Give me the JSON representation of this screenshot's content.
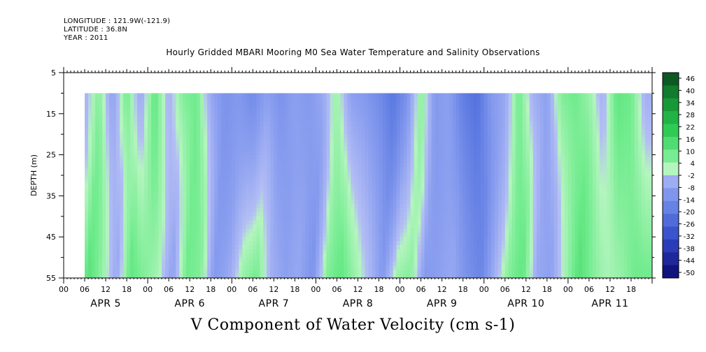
{
  "header": {
    "longitude": "LONGITUDE : 121.9W(-121.9)",
    "latitude": "LATITUDE : 36.8N",
    "year": "YEAR : 2011"
  },
  "chart_data": {
    "type": "heatmap",
    "title": "Hourly Gridded MBARI Mooring M0 Sea Water Temperature and Salinity Observations",
    "ylabel": "DEPTH (m)",
    "xlabel": "",
    "footer_label": "V Component of Water Velocity (cm s-1)",
    "y_ticks": [
      "5",
      "15",
      "25",
      "35",
      "45",
      "55"
    ],
    "y_tick_values": [
      5,
      15,
      25,
      35,
      45,
      55
    ],
    "ylim": [
      55,
      5
    ],
    "y_data_range": [
      10,
      55
    ],
    "x_hour_ticks": [
      "00",
      "06",
      "12",
      "18",
      "00",
      "06",
      "12",
      "18",
      "00",
      "06",
      "12",
      "18",
      "00",
      "06",
      "12",
      "18",
      "00",
      "06",
      "12",
      "18",
      "00",
      "06",
      "12",
      "18",
      "00",
      "06",
      "12",
      "18"
    ],
    "x_day_labels": [
      "APR  5",
      "APR  6",
      "APR  7",
      "APR  8",
      "APR  9",
      "APR 10",
      "APR 11"
    ],
    "x_range_hours": [
      0,
      168
    ],
    "data_start_hour": 6,
    "grid": false,
    "colorbar": {
      "position": "right",
      "labels": [
        "46",
        "40",
        "34",
        "28",
        "22",
        "16",
        "10",
        "4",
        "-2",
        "-8",
        "-14",
        "-20",
        "-26",
        "-32",
        "-38",
        "-44",
        "-50"
      ],
      "min": -50,
      "max": 46
    },
    "value_pattern": {
      "description_free": true,
      "hours": [
        6,
        10,
        14,
        18,
        22,
        26,
        30,
        34,
        38,
        42,
        46,
        50,
        54,
        58,
        62,
        66,
        70,
        74,
        78,
        82,
        86,
        90,
        94,
        98,
        102,
        106,
        110,
        114,
        118,
        122,
        126,
        130,
        134,
        138,
        142,
        146,
        150,
        154,
        158,
        162,
        166
      ],
      "surface": [
        -4,
        6,
        -8,
        8,
        -6,
        10,
        -4,
        6,
        8,
        -6,
        -12,
        -10,
        -14,
        -8,
        -12,
        -8,
        -10,
        -6,
        4,
        -8,
        -10,
        -14,
        -20,
        -12,
        6,
        -10,
        -8,
        -18,
        -22,
        -10,
        -6,
        8,
        -4,
        -8,
        6,
        8,
        4,
        -4,
        10,
        8,
        -4
      ],
      "bottom": [
        -2,
        12,
        4,
        -6,
        10,
        6,
        2,
        -8,
        8,
        6,
        -10,
        -6,
        4,
        8,
        -4,
        -8,
        -6,
        -12,
        6,
        10,
        4,
        -2,
        -10,
        4,
        6,
        -10,
        -8,
        -6,
        -12,
        -16,
        -4,
        6,
        10,
        -6,
        -8,
        2,
        12,
        6,
        2,
        4,
        8
      ]
    }
  }
}
